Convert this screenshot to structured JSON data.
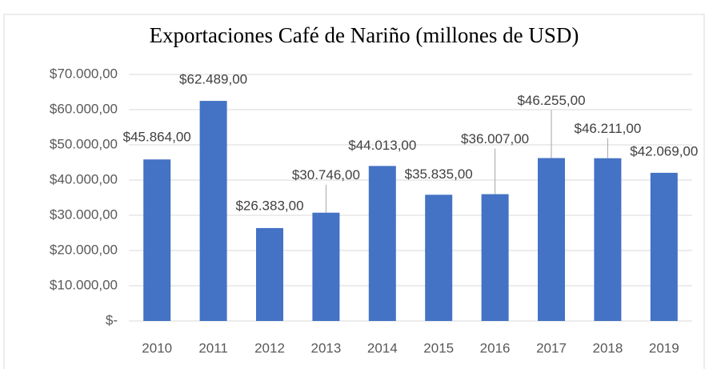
{
  "chart_data": {
    "type": "bar",
    "title": "Exportaciones Café de Nariño (millones de USD)",
    "categories": [
      "2010",
      "2011",
      "2012",
      "2013",
      "2014",
      "2015",
      "2016",
      "2017",
      "2018",
      "2019"
    ],
    "values": [
      45864,
      62489,
      26383,
      30746,
      44013,
      35835,
      36007,
      46255,
      46211,
      42069
    ],
    "value_labels": [
      "$45.864,00",
      "$62.489,00",
      "$26.383,00",
      "$30.746,00",
      "$44.013,00",
      "$35.835,00",
      "$36.007,00",
      "$46.255,00",
      "$46.211,00",
      "$42.069,00"
    ],
    "color": "#4472c4",
    "ylim": [
      0,
      70000
    ],
    "yticks": [
      {
        "value": 0,
        "label": "$-"
      },
      {
        "value": 10000,
        "label": "$10.000,00"
      },
      {
        "value": 20000,
        "label": "$20.000,00"
      },
      {
        "value": 30000,
        "label": "$30.000,00"
      },
      {
        "value": 40000,
        "label": "$40.000,00"
      },
      {
        "value": 50000,
        "label": "$50.000,00"
      },
      {
        "value": 60000,
        "label": "$60.000,00"
      },
      {
        "value": 70000,
        "label": "$70.000,00"
      }
    ],
    "grid": true
  }
}
